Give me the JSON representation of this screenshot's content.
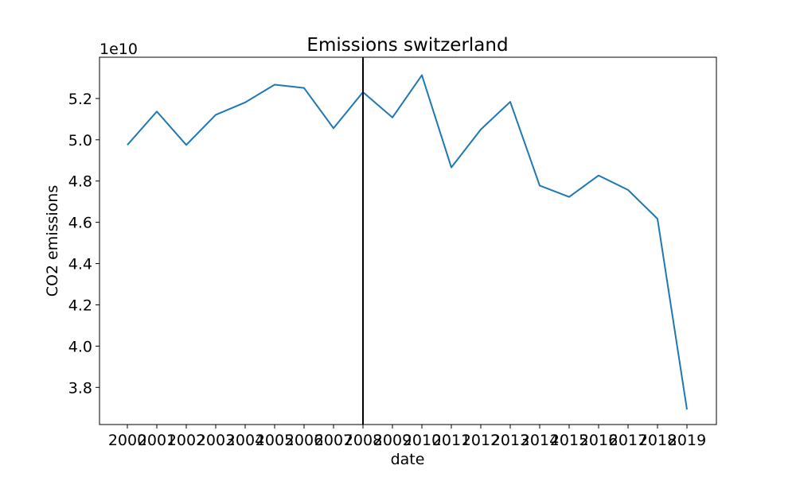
{
  "chart_data": {
    "type": "line",
    "title": "Emissions switzerland",
    "xlabel": "date",
    "ylabel": "CO2 emissions",
    "y_offset_label": "1e10",
    "y_multiplier": 10000000000,
    "categories": [
      "2000",
      "2001",
      "2002",
      "2003",
      "2004",
      "2005",
      "2006",
      "2007",
      "2008",
      "2009",
      "2010",
      "2011",
      "2012",
      "2013",
      "2014",
      "2015",
      "2016",
      "2017",
      "2018",
      "2019"
    ],
    "series": [
      {
        "color": "#1f77b4",
        "values": [
          4.975,
          5.137,
          4.975,
          5.121,
          5.181,
          5.267,
          5.251,
          5.056,
          5.231,
          5.108,
          5.313,
          4.866,
          5.05,
          5.184,
          4.778,
          4.723,
          4.827,
          4.757,
          4.617,
          3.693
        ]
      }
    ],
    "yticks": [
      "3.8",
      "4.0",
      "4.2",
      "4.4",
      "4.6",
      "4.8",
      "5.0",
      "5.2"
    ],
    "ylim": [
      3.62,
      5.4
    ],
    "vertical_line": {
      "x": "2008",
      "color": "#000000"
    },
    "grid": false,
    "legend": "none"
  }
}
